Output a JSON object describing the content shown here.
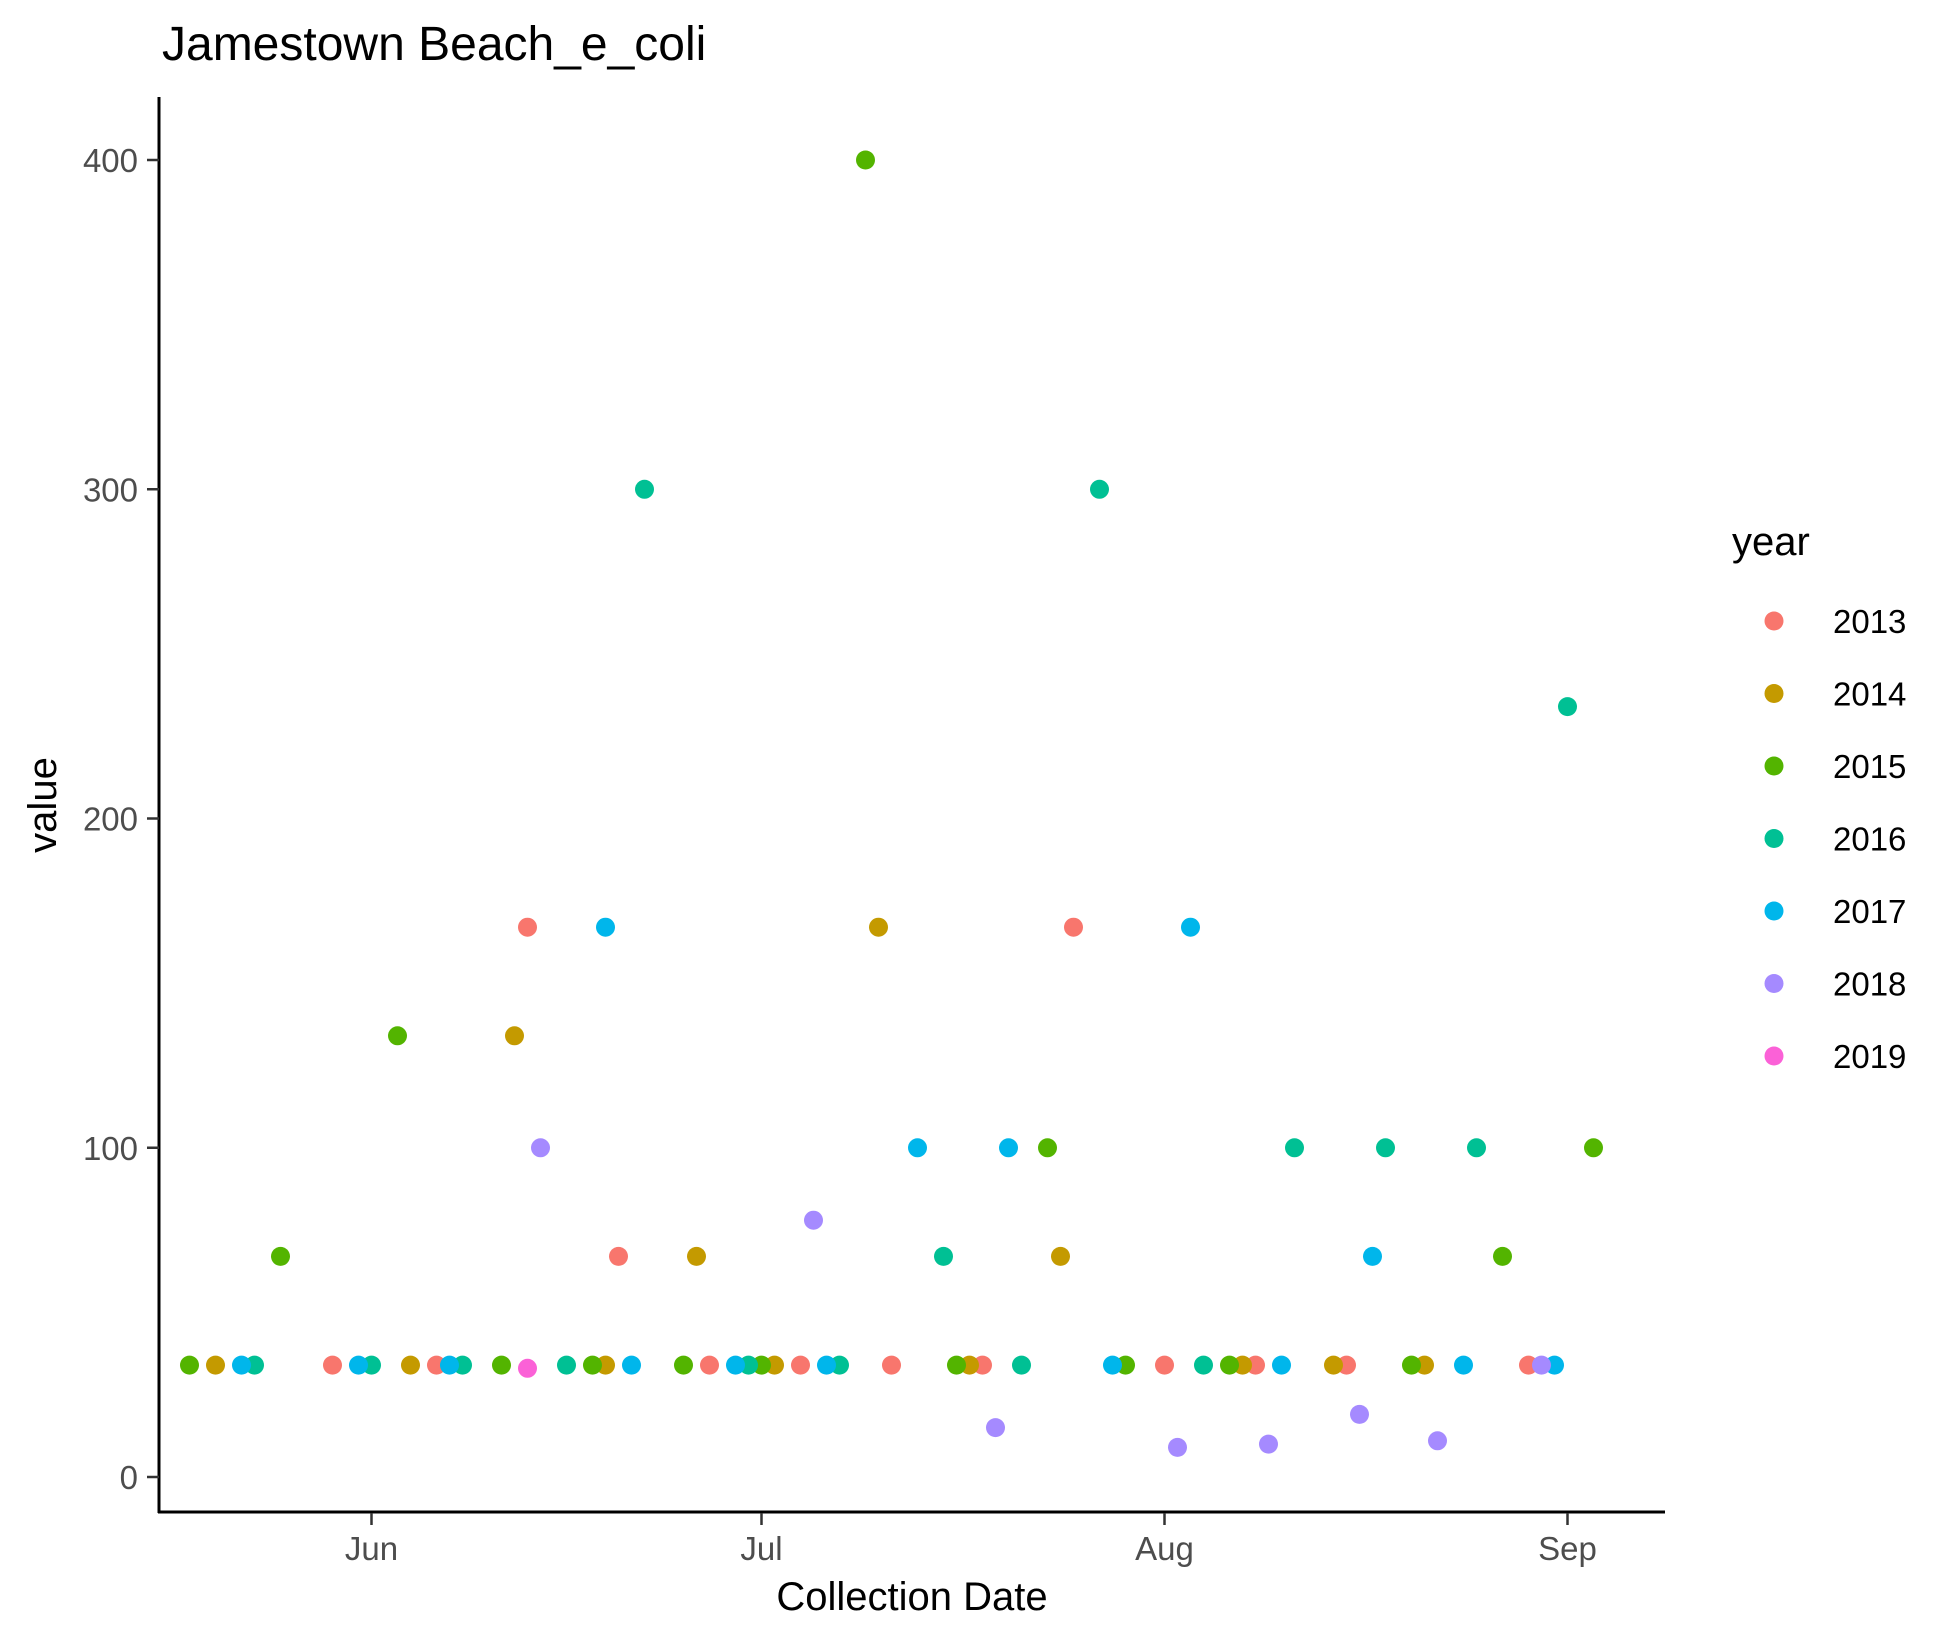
{
  "chart_data": {
    "type": "scatter",
    "title": "Jamestown Beach_e_coli",
    "xlabel": "Collection Date",
    "ylabel": "value",
    "x_ticks": [
      "Jun",
      "Jul",
      "Aug",
      "Sep"
    ],
    "y_ticks": [
      "0",
      "100",
      "200",
      "300",
      "400"
    ],
    "ylim": [
      -10,
      410
    ],
    "xlim": [
      "2000-05-15",
      "2000-09-07"
    ],
    "grid": false,
    "legend_title": "year",
    "legend_position": "right",
    "series": [
      {
        "name": "2013",
        "color": "#F8766D",
        "points": [
          [
            "2000-05-29",
            34
          ],
          [
            "2000-06-06",
            34
          ],
          [
            "2000-06-13",
            167
          ],
          [
            "2000-06-20",
            67
          ],
          [
            "2000-06-27",
            34
          ],
          [
            "2000-07-04",
            34
          ],
          [
            "2000-07-11",
            34
          ],
          [
            "2000-07-18",
            34
          ],
          [
            "2000-07-25",
            167
          ],
          [
            "2000-08-01",
            34
          ],
          [
            "2000-08-08",
            34
          ],
          [
            "2000-08-15",
            34
          ],
          [
            "2000-08-29",
            34
          ]
        ]
      },
      {
        "name": "2014",
        "color": "#C49A00",
        "points": [
          [
            "2000-05-20",
            34
          ],
          [
            "2000-06-04",
            34
          ],
          [
            "2000-06-12",
            134
          ],
          [
            "2000-06-19",
            34
          ],
          [
            "2000-06-26",
            67
          ],
          [
            "2000-07-02",
            34
          ],
          [
            "2000-07-10",
            167
          ],
          [
            "2000-07-17",
            34
          ],
          [
            "2000-07-24",
            67
          ],
          [
            "2000-08-07",
            34
          ],
          [
            "2000-08-14",
            34
          ],
          [
            "2000-08-21",
            34
          ]
        ]
      },
      {
        "name": "2015",
        "color": "#53B400",
        "points": [
          [
            "2000-05-18",
            34
          ],
          [
            "2000-05-25",
            67
          ],
          [
            "2000-06-03",
            134
          ],
          [
            "2000-06-11",
            34
          ],
          [
            "2000-06-18",
            34
          ],
          [
            "2000-06-25",
            34
          ],
          [
            "2000-07-01",
            34
          ],
          [
            "2000-07-09",
            400
          ],
          [
            "2000-07-16",
            34
          ],
          [
            "2000-07-23",
            100
          ],
          [
            "2000-07-29",
            34
          ],
          [
            "2000-08-06",
            34
          ],
          [
            "2000-08-20",
            34
          ],
          [
            "2000-08-27",
            67
          ],
          [
            "2000-09-03",
            100
          ]
        ]
      },
      {
        "name": "2016",
        "color": "#00C094",
        "points": [
          [
            "2000-05-23",
            34
          ],
          [
            "2000-06-01",
            34
          ],
          [
            "2000-06-08",
            34
          ],
          [
            "2000-06-16",
            34
          ],
          [
            "2000-06-22",
            300
          ],
          [
            "2000-06-30",
            34
          ],
          [
            "2000-07-07",
            34
          ],
          [
            "2000-07-15",
            67
          ],
          [
            "2000-07-21",
            34
          ],
          [
            "2000-07-27",
            300
          ],
          [
            "2000-08-04",
            34
          ],
          [
            "2000-08-11",
            100
          ],
          [
            "2000-08-18",
            100
          ],
          [
            "2000-08-25",
            100
          ],
          [
            "2000-09-01",
            234
          ]
        ]
      },
      {
        "name": "2017",
        "color": "#00B6EB",
        "points": [
          [
            "2000-05-22",
            34
          ],
          [
            "2000-05-31",
            34
          ],
          [
            "2000-06-07",
            34
          ],
          [
            "2000-06-19",
            167
          ],
          [
            "2000-06-21",
            34
          ],
          [
            "2000-06-29",
            34
          ],
          [
            "2000-07-06",
            34
          ],
          [
            "2000-07-13",
            100
          ],
          [
            "2000-07-20",
            100
          ],
          [
            "2000-07-28",
            34
          ],
          [
            "2000-08-03",
            167
          ],
          [
            "2000-08-10",
            34
          ],
          [
            "2000-08-17",
            67
          ],
          [
            "2000-08-24",
            34
          ],
          [
            "2000-08-31",
            34
          ]
        ]
      },
      {
        "name": "2018",
        "color": "#A58AFF",
        "points": [
          [
            "2000-06-14",
            100
          ],
          [
            "2000-07-05",
            78
          ],
          [
            "2000-07-19",
            15
          ],
          [
            "2000-08-02",
            9
          ],
          [
            "2000-08-09",
            10
          ],
          [
            "2000-08-16",
            19
          ],
          [
            "2000-08-22",
            11
          ],
          [
            "2000-08-30",
            34
          ]
        ]
      },
      {
        "name": "2019",
        "color": "#FB61D7",
        "points": [
          [
            "2000-06-13",
            33
          ]
        ]
      }
    ]
  }
}
